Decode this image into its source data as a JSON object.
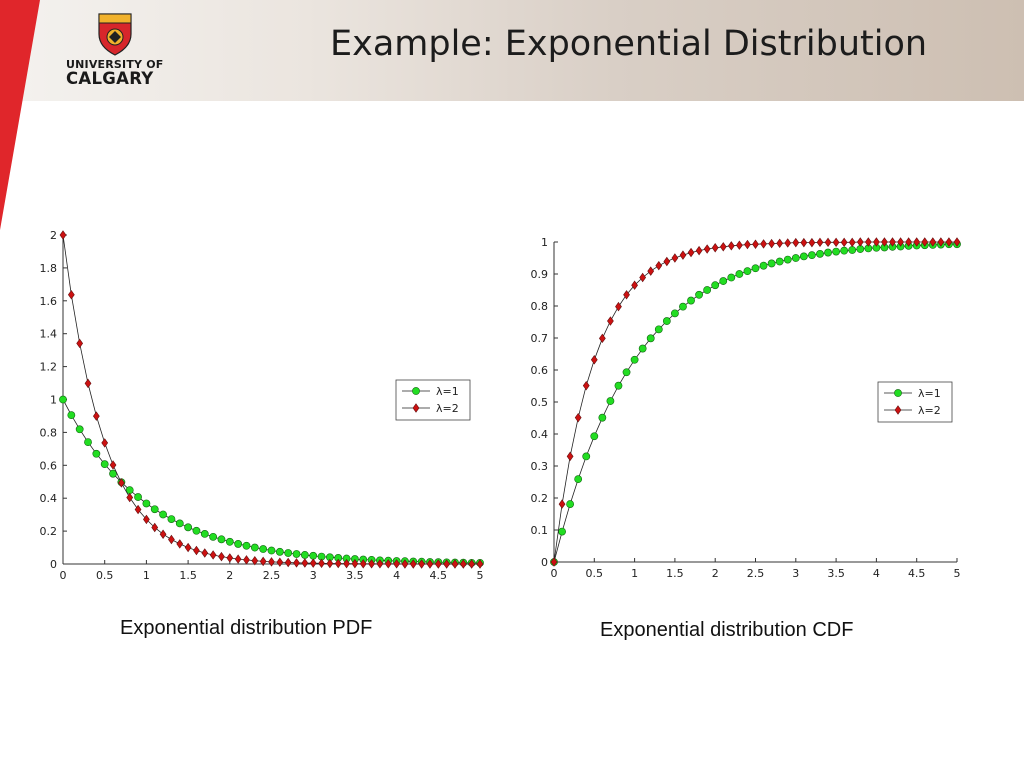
{
  "header": {
    "title": "Example: Exponential Distribution",
    "logo": {
      "line1": "UNIVERSITY OF",
      "line2": "CALGARY"
    }
  },
  "colors": {
    "accent_red": "#e0262b",
    "series1": "#22dd22",
    "series2": "#cc1111"
  },
  "captions": {
    "pdf": "Exponential distribution PDF",
    "cdf": "Exponential distribution CDF"
  },
  "chart_data": [
    {
      "type": "line",
      "function": "pdf",
      "x": [
        0,
        0.1,
        0.2,
        0.3,
        0.4,
        0.5,
        0.6,
        0.7,
        0.8,
        0.9,
        1,
        1.1,
        1.2,
        1.3,
        1.4,
        1.5,
        1.6,
        1.7,
        1.8,
        1.9,
        2,
        2.1,
        2.2,
        2.3,
        2.4,
        2.5,
        2.6,
        2.7,
        2.8,
        2.9,
        3,
        3.1,
        3.2,
        3.3,
        3.4,
        3.5,
        3.6,
        3.7,
        3.8,
        3.9,
        4,
        4.1,
        4.2,
        4.3,
        4.4,
        4.5,
        4.6,
        4.7,
        4.8,
        4.9,
        5
      ],
      "series": [
        {
          "name": "λ=1",
          "marker": "circle",
          "values": [
            1,
            0.905,
            0.819,
            0.741,
            0.67,
            0.607,
            0.549,
            0.497,
            0.449,
            0.407,
            0.368,
            0.333,
            0.301,
            0.273,
            0.247,
            0.223,
            0.202,
            0.183,
            0.165,
            0.15,
            0.135,
            0.122,
            0.111,
            0.1,
            0.091,
            0.082,
            0.074,
            0.067,
            0.061,
            0.055,
            0.05,
            0.045,
            0.041,
            0.037,
            0.033,
            0.03,
            0.027,
            0.025,
            0.022,
            0.02,
            0.018,
            0.017,
            0.015,
            0.014,
            0.012,
            0.011,
            0.01,
            0.009,
            0.008,
            0.007,
            0.007
          ]
        },
        {
          "name": "λ=2",
          "marker": "diamond",
          "values": [
            2,
            1.637,
            1.341,
            1.098,
            0.899,
            0.736,
            0.602,
            0.493,
            0.404,
            0.331,
            0.271,
            0.222,
            0.181,
            0.149,
            0.122,
            0.1,
            0.082,
            0.067,
            0.055,
            0.045,
            0.037,
            0.03,
            0.025,
            0.02,
            0.016,
            0.013,
            0.011,
            0.009,
            0.007,
            0.006,
            0.005,
            0.004,
            0.003,
            0.003,
            0.002,
            0.002,
            0.001,
            0.001,
            0.001,
            0.001,
            0.001,
            0,
            0,
            0,
            0,
            0,
            0,
            0,
            0,
            0,
            0
          ]
        }
      ],
      "xlim": [
        0,
        5
      ],
      "ylim": [
        0,
        2
      ],
      "xticks": [
        "0",
        "0.5",
        "1",
        "1.5",
        "2",
        "2.5",
        "3",
        "3.5",
        "4",
        "4.5",
        "5"
      ],
      "yticks": [
        "0",
        "0.2",
        "0.4",
        "0.6",
        "0.8",
        "1",
        "1.2",
        "1.4",
        "1.6",
        "1.8",
        "2"
      ],
      "legend": "right-middle",
      "grid": false
    },
    {
      "type": "line",
      "function": "cdf",
      "x": [
        0,
        0.1,
        0.2,
        0.3,
        0.4,
        0.5,
        0.6,
        0.7,
        0.8,
        0.9,
        1,
        1.1,
        1.2,
        1.3,
        1.4,
        1.5,
        1.6,
        1.7,
        1.8,
        1.9,
        2,
        2.1,
        2.2,
        2.3,
        2.4,
        2.5,
        2.6,
        2.7,
        2.8,
        2.9,
        3,
        3.1,
        3.2,
        3.3,
        3.4,
        3.5,
        3.6,
        3.7,
        3.8,
        3.9,
        4,
        4.1,
        4.2,
        4.3,
        4.4,
        4.5,
        4.6,
        4.7,
        4.8,
        4.9,
        5
      ],
      "series": [
        {
          "name": "λ=1",
          "marker": "circle",
          "values": [
            0,
            0.095,
            0.181,
            0.259,
            0.33,
            0.393,
            0.451,
            0.503,
            0.551,
            0.593,
            0.632,
            0.667,
            0.699,
            0.727,
            0.753,
            0.777,
            0.798,
            0.817,
            0.835,
            0.85,
            0.865,
            0.878,
            0.889,
            0.9,
            0.909,
            0.918,
            0.926,
            0.933,
            0.939,
            0.945,
            0.95,
            0.955,
            0.959,
            0.963,
            0.967,
            0.97,
            0.973,
            0.975,
            0.978,
            0.98,
            0.982,
            0.983,
            0.985,
            0.986,
            0.988,
            0.989,
            0.99,
            0.991,
            0.992,
            0.993,
            0.993
          ]
        },
        {
          "name": "λ=2",
          "marker": "diamond",
          "values": [
            0,
            0.181,
            0.33,
            0.451,
            0.551,
            0.632,
            0.699,
            0.753,
            0.798,
            0.835,
            0.865,
            0.889,
            0.909,
            0.926,
            0.939,
            0.95,
            0.959,
            0.967,
            0.973,
            0.978,
            0.982,
            0.985,
            0.988,
            0.99,
            0.992,
            0.993,
            0.994,
            0.995,
            0.996,
            0.997,
            0.998,
            0.998,
            0.998,
            0.999,
            0.999,
            0.999,
            0.999,
            0.999,
            1,
            1,
            1,
            1,
            1,
            1,
            1,
            1,
            1,
            1,
            1,
            1,
            1
          ]
        }
      ],
      "xlim": [
        0,
        5
      ],
      "ylim": [
        0,
        1
      ],
      "xticks": [
        "0",
        "0.5",
        "1",
        "1.5",
        "2",
        "2.5",
        "3",
        "3.5",
        "4",
        "4.5",
        "5"
      ],
      "yticks": [
        "0",
        "0.1",
        "0.2",
        "0.3",
        "0.4",
        "0.5",
        "0.6",
        "0.7",
        "0.8",
        "0.9",
        "1"
      ],
      "legend": "right-middle",
      "grid": false
    }
  ]
}
